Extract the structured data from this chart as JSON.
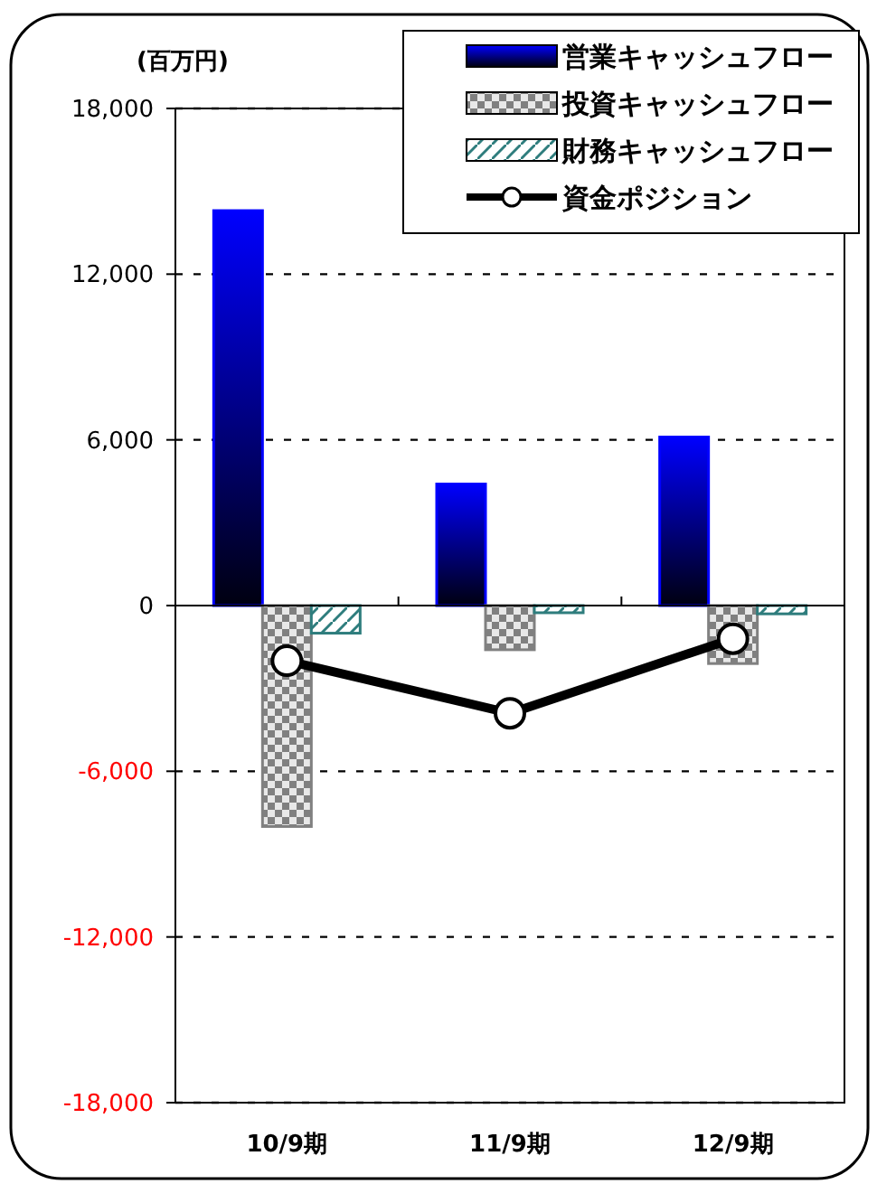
{
  "chart_data": {
    "type": "bar",
    "ylabel": "(百万円)",
    "categories": [
      "10/9期",
      "11/9期",
      "12/9期"
    ],
    "series": [
      {
        "name": "営業キャッシュフロー",
        "color": "#0000ff",
        "values": [
          14300,
          4400,
          6100
        ]
      },
      {
        "name": "投資キャッシュフロー",
        "color": "#808080",
        "values": [
          -8000,
          -1600,
          -2100
        ]
      },
      {
        "name": "財務キャッシュフロー",
        "color": "#2e7d7d",
        "values": [
          -1000,
          -260,
          -300
        ]
      },
      {
        "name": "資金ポジション",
        "type": "line",
        "color": "#000000",
        "marker": "circle",
        "values": [
          -2000,
          -3900,
          -1200
        ]
      }
    ],
    "ylim": [
      -18000,
      18000
    ],
    "yticks": [
      {
        "value": -18000,
        "label": "-18,000"
      },
      {
        "value": -12000,
        "label": "-12,000"
      },
      {
        "value": -6000,
        "label": "-6,000"
      },
      {
        "value": 0,
        "label": "0"
      },
      {
        "value": 6000,
        "label": "6,000"
      },
      {
        "value": 12000,
        "label": "12,000"
      },
      {
        "value": 18000,
        "label": "18,000"
      }
    ],
    "grid": "y",
    "legend": "top right"
  }
}
